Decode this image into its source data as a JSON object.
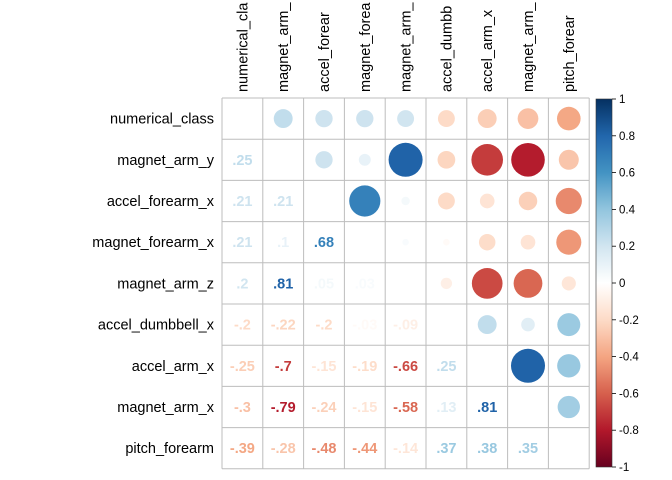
{
  "chart_data": {
    "type": "heatmap",
    "title": "",
    "row_labels": [
      "numerical_class",
      "magnet_arm_y",
      "accel_forearm_x",
      "magnet_forearm_x",
      "magnet_arm_z",
      "accel_dumbbell_x",
      "accel_arm_x",
      "magnet_arm_x",
      "pitch_forearm"
    ],
    "column_labels_visible": [
      "numerical_cla",
      "magnet_arm_",
      "accel_forear",
      "magnet_forea",
      "magnet_arm_",
      "accel_dumbb",
      "accel_arm_x",
      "magnet_arm_",
      "pitch_forear"
    ],
    "values": [
      [
        null,
        0.25,
        0.21,
        0.21,
        0.2,
        -0.2,
        -0.25,
        -0.3,
        -0.39
      ],
      [
        0.25,
        null,
        0.21,
        0.1,
        0.81,
        -0.22,
        -0.7,
        -0.79,
        -0.28
      ],
      [
        0.21,
        0.21,
        null,
        0.68,
        0.05,
        -0.2,
        -0.15,
        -0.24,
        -0.48
      ],
      [
        0.21,
        0.1,
        0.68,
        null,
        0.03,
        -0.03,
        -0.19,
        -0.15,
        -0.44
      ],
      [
        0.2,
        0.81,
        0.05,
        0.03,
        null,
        -0.09,
        -0.66,
        -0.58,
        -0.14
      ],
      [
        -0.2,
        -0.22,
        -0.2,
        -0.03,
        -0.09,
        null,
        0.25,
        0.13,
        0.37
      ],
      [
        -0.25,
        -0.7,
        -0.15,
        -0.19,
        -0.66,
        0.25,
        null,
        0.81,
        0.38
      ],
      [
        -0.3,
        -0.79,
        -0.24,
        -0.15,
        -0.58,
        0.13,
        0.81,
        null,
        0.35
      ],
      [
        -0.39,
        -0.28,
        -0.48,
        -0.44,
        -0.14,
        0.37,
        0.38,
        0.35,
        null
      ]
    ],
    "upper_triangle": "circles",
    "lower_triangle": "numbers",
    "legend_placement": "right",
    "colorbar": {
      "range": [
        -1,
        1
      ],
      "ticks": [
        1,
        0.8,
        0.6,
        0.4,
        0.2,
        0,
        -0.2,
        -0.4,
        -0.6,
        -0.8,
        -1
      ],
      "tick_labels": [
        "1",
        "0.8",
        "0.6",
        "0.4",
        "0.2",
        "0",
        "-0.2",
        "-0.4",
        "-0.6",
        "-0.8",
        "-1"
      ],
      "colors": [
        "#67001F",
        "#B2182B",
        "#D6604D",
        "#F4A582",
        "#FDDBC7",
        "#FFFFFF",
        "#D1E5F0",
        "#92C5DE",
        "#4393C3",
        "#2166AC",
        "#053061"
      ]
    }
  }
}
